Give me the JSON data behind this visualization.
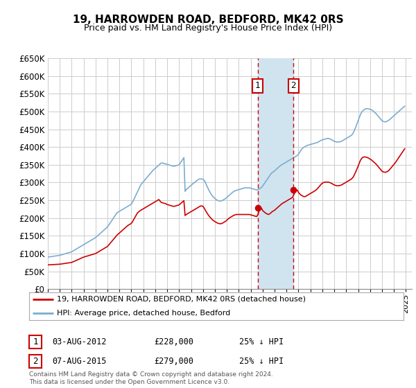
{
  "title": "19, HARROWDEN ROAD, BEDFORD, MK42 0RS",
  "subtitle": "Price paid vs. HM Land Registry's House Price Index (HPI)",
  "ylim": [
    0,
    650000
  ],
  "xlim_start": 1995.0,
  "xlim_end": 2025.5,
  "transaction1": {
    "date_label": "03-AUG-2012",
    "year": 2012.58,
    "price": 228000,
    "label": "25% ↓ HPI",
    "num": "1"
  },
  "transaction2": {
    "date_label": "07-AUG-2015",
    "year": 2015.58,
    "price": 279000,
    "label": "25% ↓ HPI",
    "num": "2"
  },
  "line_red_color": "#cc0000",
  "line_blue_color": "#7aadcf",
  "dot_color": "#cc0000",
  "shade_color": "#d0e4f0",
  "grid_color": "#cccccc",
  "background_color": "#ffffff",
  "legend_line1": "19, HARROWDEN ROAD, BEDFORD, MK42 0RS (detached house)",
  "legend_line2": "HPI: Average price, detached house, Bedford",
  "footnote": "Contains HM Land Registry data © Crown copyright and database right 2024.\nThis data is licensed under the Open Government Licence v3.0.",
  "hpi_x": [
    1995.0,
    1995.1,
    1995.2,
    1995.3,
    1995.4,
    1995.5,
    1995.6,
    1995.7,
    1995.8,
    1995.9,
    1996.0,
    1996.1,
    1996.2,
    1996.3,
    1996.4,
    1996.5,
    1996.6,
    1996.7,
    1996.8,
    1996.9,
    1997.0,
    1997.1,
    1997.2,
    1997.3,
    1997.4,
    1997.5,
    1997.6,
    1997.7,
    1997.8,
    1997.9,
    1998.0,
    1998.1,
    1998.2,
    1998.3,
    1998.4,
    1998.5,
    1998.6,
    1998.7,
    1998.8,
    1998.9,
    1999.0,
    1999.1,
    1999.2,
    1999.3,
    1999.4,
    1999.5,
    1999.6,
    1999.7,
    1999.8,
    1999.9,
    2000.0,
    2000.1,
    2000.2,
    2000.3,
    2000.4,
    2000.5,
    2000.6,
    2000.7,
    2000.8,
    2000.9,
    2001.0,
    2001.1,
    2001.2,
    2001.3,
    2001.4,
    2001.5,
    2001.6,
    2001.7,
    2001.8,
    2001.9,
    2002.0,
    2002.1,
    2002.2,
    2002.3,
    2002.4,
    2002.5,
    2002.6,
    2002.7,
    2002.8,
    2002.9,
    2003.0,
    2003.1,
    2003.2,
    2003.3,
    2003.4,
    2003.5,
    2003.6,
    2003.7,
    2003.8,
    2003.9,
    2004.0,
    2004.1,
    2004.2,
    2004.3,
    2004.4,
    2004.5,
    2004.6,
    2004.7,
    2004.8,
    2004.9,
    2005.0,
    2005.1,
    2005.2,
    2005.3,
    2005.4,
    2005.5,
    2005.6,
    2005.7,
    2005.8,
    2005.9,
    2006.0,
    2006.1,
    2006.2,
    2006.3,
    2006.4,
    2006.5,
    2006.6,
    2006.7,
    2006.8,
    2006.9,
    2007.0,
    2007.1,
    2007.2,
    2007.3,
    2007.4,
    2007.5,
    2007.6,
    2007.7,
    2007.8,
    2007.9,
    2008.0,
    2008.1,
    2008.2,
    2008.3,
    2008.4,
    2008.5,
    2008.6,
    2008.7,
    2008.8,
    2008.9,
    2009.0,
    2009.1,
    2009.2,
    2009.3,
    2009.4,
    2009.5,
    2009.6,
    2009.7,
    2009.8,
    2009.9,
    2010.0,
    2010.1,
    2010.2,
    2010.3,
    2010.4,
    2010.5,
    2010.6,
    2010.7,
    2010.8,
    2010.9,
    2011.0,
    2011.1,
    2011.2,
    2011.3,
    2011.4,
    2011.5,
    2011.6,
    2011.7,
    2011.8,
    2011.9,
    2012.0,
    2012.1,
    2012.2,
    2012.3,
    2012.4,
    2012.5,
    2012.6,
    2012.7,
    2012.8,
    2012.9,
    2013.0,
    2013.1,
    2013.2,
    2013.3,
    2013.4,
    2013.5,
    2013.6,
    2013.7,
    2013.8,
    2013.9,
    2014.0,
    2014.1,
    2014.2,
    2014.3,
    2014.4,
    2014.5,
    2014.6,
    2014.7,
    2014.8,
    2014.9,
    2015.0,
    2015.1,
    2015.2,
    2015.3,
    2015.4,
    2015.5,
    2015.6,
    2015.7,
    2015.8,
    2015.9,
    2016.0,
    2016.1,
    2016.2,
    2016.3,
    2016.4,
    2016.5,
    2016.6,
    2016.7,
    2016.8,
    2016.9,
    2017.0,
    2017.1,
    2017.2,
    2017.3,
    2017.4,
    2017.5,
    2017.6,
    2017.7,
    2017.8,
    2017.9,
    2018.0,
    2018.1,
    2018.2,
    2018.3,
    2018.4,
    2018.5,
    2018.6,
    2018.7,
    2018.8,
    2018.9,
    2019.0,
    2019.1,
    2019.2,
    2019.3,
    2019.4,
    2019.5,
    2019.6,
    2019.7,
    2019.8,
    2019.9,
    2020.0,
    2020.1,
    2020.2,
    2020.3,
    2020.4,
    2020.5,
    2020.6,
    2020.7,
    2020.8,
    2020.9,
    2021.0,
    2021.1,
    2021.2,
    2021.3,
    2021.4,
    2021.5,
    2021.6,
    2021.7,
    2021.8,
    2021.9,
    2022.0,
    2022.1,
    2022.2,
    2022.3,
    2022.4,
    2022.5,
    2022.6,
    2022.7,
    2022.8,
    2022.9,
    2023.0,
    2023.1,
    2023.2,
    2023.3,
    2023.4,
    2023.5,
    2023.6,
    2023.7,
    2023.8,
    2023.9,
    2024.0,
    2024.1,
    2024.2,
    2024.3,
    2024.4,
    2024.5,
    2024.6,
    2024.7,
    2024.8,
    2024.9
  ],
  "hpi_y": [
    90000,
    90500,
    91000,
    91500,
    92000,
    92500,
    93000,
    93500,
    94000,
    94500,
    95000,
    96000,
    97000,
    98000,
    99000,
    100000,
    101000,
    102000,
    103000,
    104000,
    105000,
    107000,
    109000,
    111000,
    113000,
    115000,
    117000,
    119000,
    121000,
    123000,
    125000,
    127000,
    129000,
    131000,
    133000,
    135000,
    137000,
    139000,
    141000,
    143000,
    145000,
    148000,
    151000,
    154000,
    157000,
    160000,
    163000,
    166000,
    169000,
    172000,
    175000,
    180000,
    185000,
    190000,
    195000,
    200000,
    205000,
    210000,
    215000,
    217000,
    219000,
    221000,
    223000,
    225000,
    227000,
    229000,
    231000,
    233000,
    235000,
    237000,
    240000,
    245000,
    252000,
    259000,
    266000,
    273000,
    280000,
    287000,
    294000,
    298000,
    302000,
    306000,
    310000,
    314000,
    318000,
    322000,
    326000,
    330000,
    334000,
    337000,
    340000,
    343000,
    346000,
    349000,
    352000,
    355000,
    355000,
    354000,
    353000,
    352000,
    351000,
    350000,
    349000,
    348000,
    347000,
    346000,
    346000,
    347000,
    348000,
    349000,
    350000,
    355000,
    360000,
    365000,
    370000,
    275000,
    280000,
    283000,
    286000,
    289000,
    292000,
    295000,
    298000,
    300000,
    303000,
    306000,
    308000,
    310000,
    310000,
    310000,
    309000,
    306000,
    300000,
    292000,
    285000,
    278000,
    272000,
    266000,
    262000,
    258000,
    255000,
    252000,
    250000,
    249000,
    248000,
    248000,
    249000,
    251000,
    253000,
    255000,
    258000,
    261000,
    264000,
    267000,
    270000,
    273000,
    275000,
    277000,
    278000,
    279000,
    280000,
    281000,
    282000,
    283000,
    284000,
    285000,
    285000,
    285000,
    285000,
    285000,
    284000,
    283000,
    282000,
    281000,
    280000,
    279000,
    280000,
    282000,
    284000,
    286000,
    290000,
    295000,
    300000,
    305000,
    310000,
    315000,
    320000,
    325000,
    328000,
    330000,
    333000,
    336000,
    339000,
    342000,
    345000,
    348000,
    350000,
    352000,
    354000,
    356000,
    358000,
    360000,
    362000,
    364000,
    366000,
    368000,
    370000,
    372000,
    374000,
    376000,
    380000,
    385000,
    390000,
    395000,
    398000,
    400000,
    402000,
    404000,
    405000,
    406000,
    407000,
    408000,
    409000,
    410000,
    411000,
    412000,
    413000,
    415000,
    417000,
    419000,
    420000,
    421000,
    422000,
    423000,
    424000,
    424000,
    423000,
    422000,
    420000,
    418000,
    416000,
    415000,
    414000,
    414000,
    414000,
    415000,
    416000,
    418000,
    420000,
    422000,
    424000,
    426000,
    428000,
    430000,
    432000,
    435000,
    440000,
    448000,
    456000,
    465000,
    474000,
    483000,
    492000,
    498000,
    502000,
    505000,
    507000,
    508000,
    508000,
    507000,
    506000,
    505000,
    503000,
    500000,
    497000,
    494000,
    490000,
    486000,
    482000,
    478000,
    474000,
    472000,
    471000,
    471000,
    472000,
    474000,
    476000,
    479000,
    482000,
    485000,
    488000,
    491000,
    494000,
    497000,
    500000,
    503000,
    506000,
    509000,
    512000,
    515000
  ],
  "red_x": [
    1995.0,
    1995.1,
    1995.2,
    1995.3,
    1995.4,
    1995.5,
    1995.6,
    1995.7,
    1995.8,
    1995.9,
    1996.0,
    1996.1,
    1996.2,
    1996.3,
    1996.4,
    1996.5,
    1996.6,
    1996.7,
    1996.8,
    1996.9,
    1997.0,
    1997.1,
    1997.2,
    1997.3,
    1997.4,
    1997.5,
    1997.6,
    1997.7,
    1997.8,
    1997.9,
    1998.0,
    1998.1,
    1998.2,
    1998.3,
    1998.4,
    1998.5,
    1998.6,
    1998.7,
    1998.8,
    1998.9,
    1999.0,
    1999.1,
    1999.2,
    1999.3,
    1999.4,
    1999.5,
    1999.6,
    1999.7,
    1999.8,
    1999.9,
    2000.0,
    2000.1,
    2000.2,
    2000.3,
    2000.4,
    2000.5,
    2000.6,
    2000.7,
    2000.8,
    2000.9,
    2001.0,
    2001.1,
    2001.2,
    2001.3,
    2001.4,
    2001.5,
    2001.6,
    2001.7,
    2001.8,
    2001.9,
    2002.0,
    2002.1,
    2002.2,
    2002.3,
    2002.4,
    2002.5,
    2002.6,
    2002.7,
    2002.8,
    2002.9,
    2003.0,
    2003.1,
    2003.2,
    2003.3,
    2003.4,
    2003.5,
    2003.6,
    2003.7,
    2003.8,
    2003.9,
    2004.0,
    2004.1,
    2004.2,
    2004.3,
    2004.4,
    2004.5,
    2004.6,
    2004.7,
    2004.8,
    2004.9,
    2005.0,
    2005.1,
    2005.2,
    2005.3,
    2005.4,
    2005.5,
    2005.6,
    2005.7,
    2005.8,
    2005.9,
    2006.0,
    2006.1,
    2006.2,
    2006.3,
    2006.4,
    2006.5,
    2006.6,
    2006.7,
    2006.8,
    2006.9,
    2007.0,
    2007.1,
    2007.2,
    2007.3,
    2007.4,
    2007.5,
    2007.6,
    2007.7,
    2007.8,
    2007.9,
    2008.0,
    2008.1,
    2008.2,
    2008.3,
    2008.4,
    2008.5,
    2008.6,
    2008.7,
    2008.8,
    2008.9,
    2009.0,
    2009.1,
    2009.2,
    2009.3,
    2009.4,
    2009.5,
    2009.6,
    2009.7,
    2009.8,
    2009.9,
    2010.0,
    2010.1,
    2010.2,
    2010.3,
    2010.4,
    2010.5,
    2010.6,
    2010.7,
    2010.8,
    2010.9,
    2011.0,
    2011.1,
    2011.2,
    2011.3,
    2011.4,
    2011.5,
    2011.6,
    2011.7,
    2011.8,
    2011.9,
    2012.0,
    2012.1,
    2012.2,
    2012.3,
    2012.4,
    2012.5,
    2012.6,
    2012.7,
    2012.8,
    2012.9,
    2013.0,
    2013.1,
    2013.2,
    2013.3,
    2013.4,
    2013.5,
    2013.6,
    2013.7,
    2013.8,
    2013.9,
    2014.0,
    2014.1,
    2014.2,
    2014.3,
    2014.4,
    2014.5,
    2014.6,
    2014.7,
    2014.8,
    2014.9,
    2015.0,
    2015.1,
    2015.2,
    2015.3,
    2015.4,
    2015.5,
    2015.6,
    2015.7,
    2015.8,
    2015.9,
    2016.0,
    2016.1,
    2016.2,
    2016.3,
    2016.4,
    2016.5,
    2016.6,
    2016.7,
    2016.8,
    2016.9,
    2017.0,
    2017.1,
    2017.2,
    2017.3,
    2017.4,
    2017.5,
    2017.6,
    2017.7,
    2017.8,
    2017.9,
    2018.0,
    2018.1,
    2018.2,
    2018.3,
    2018.4,
    2018.5,
    2018.6,
    2018.7,
    2018.8,
    2018.9,
    2019.0,
    2019.1,
    2019.2,
    2019.3,
    2019.4,
    2019.5,
    2019.6,
    2019.7,
    2019.8,
    2019.9,
    2020.0,
    2020.1,
    2020.2,
    2020.3,
    2020.4,
    2020.5,
    2020.6,
    2020.7,
    2020.8,
    2020.9,
    2021.0,
    2021.1,
    2021.2,
    2021.3,
    2021.4,
    2021.5,
    2021.6,
    2021.7,
    2021.8,
    2021.9,
    2022.0,
    2022.1,
    2022.2,
    2022.3,
    2022.4,
    2022.5,
    2022.6,
    2022.7,
    2022.8,
    2022.9,
    2023.0,
    2023.1,
    2023.2,
    2023.3,
    2023.4,
    2023.5,
    2023.6,
    2023.7,
    2023.8,
    2023.9,
    2024.0,
    2024.1,
    2024.2,
    2024.3,
    2024.4,
    2024.5,
    2024.6,
    2024.7,
    2024.8,
    2024.9
  ],
  "red_y": [
    68000,
    68200,
    68400,
    68600,
    68800,
    69000,
    69200,
    69400,
    69600,
    69800,
    70000,
    70500,
    71000,
    71500,
    72000,
    72500,
    73000,
    73500,
    74000,
    74500,
    75000,
    76500,
    78000,
    79500,
    81000,
    82500,
    84000,
    85500,
    87000,
    88500,
    90000,
    91000,
    92000,
    93000,
    94000,
    95000,
    96000,
    97000,
    98000,
    99000,
    100000,
    102000,
    104000,
    106000,
    108000,
    110000,
    112000,
    114000,
    116000,
    118000,
    120000,
    124000,
    128000,
    132000,
    136000,
    140000,
    144000,
    148000,
    152000,
    155000,
    158000,
    161000,
    164000,
    167000,
    170000,
    173000,
    176000,
    179000,
    181000,
    183000,
    185000,
    190000,
    196000,
    202000,
    208000,
    214000,
    217000,
    220000,
    222000,
    224000,
    226000,
    228000,
    230000,
    232000,
    234000,
    236000,
    238000,
    240000,
    242000,
    244000,
    246000,
    248000,
    250000,
    252000,
    248000,
    244000,
    243000,
    242000,
    241000,
    240000,
    238000,
    237000,
    236000,
    235000,
    234000,
    233000,
    233000,
    234000,
    235000,
    236000,
    237000,
    240000,
    243000,
    246000,
    249000,
    207000,
    210000,
    212000,
    214000,
    216000,
    218000,
    220000,
    222000,
    224000,
    226000,
    228000,
    230000,
    232000,
    234000,
    234000,
    233000,
    228000,
    222000,
    216000,
    211000,
    206000,
    202000,
    198000,
    195000,
    192000,
    190000,
    188000,
    186000,
    185000,
    184000,
    184000,
    185000,
    187000,
    189000,
    191000,
    194000,
    197000,
    200000,
    202000,
    204000,
    206000,
    208000,
    209000,
    210000,
    210000,
    210000,
    210000,
    210000,
    210000,
    210000,
    210000,
    210000,
    210000,
    210000,
    210000,
    209000,
    208000,
    207000,
    206000,
    205000,
    204000,
    210000,
    220000,
    226000,
    228000,
    221000,
    218000,
    215000,
    213000,
    211000,
    210000,
    212000,
    215000,
    218000,
    220000,
    222000,
    225000,
    228000,
    231000,
    234000,
    237000,
    240000,
    242000,
    244000,
    246000,
    248000,
    250000,
    252000,
    254000,
    256000,
    258000,
    265000,
    272000,
    276000,
    279000,
    272000,
    268000,
    265000,
    263000,
    261000,
    260000,
    261000,
    263000,
    265000,
    267000,
    269000,
    271000,
    273000,
    275000,
    277000,
    280000,
    283000,
    287000,
    291000,
    295000,
    298000,
    300000,
    301000,
    301000,
    301000,
    301000,
    300000,
    299000,
    297000,
    295000,
    293000,
    292000,
    291000,
    291000,
    291000,
    292000,
    293000,
    295000,
    297000,
    299000,
    301000,
    303000,
    305000,
    307000,
    309000,
    312000,
    316000,
    323000,
    330000,
    338000,
    346000,
    355000,
    363000,
    368000,
    371000,
    372000,
    372000,
    371000,
    370000,
    368000,
    366000,
    364000,
    361000,
    358000,
    355000,
    352000,
    348000,
    344000,
    340000,
    336000,
    332000,
    330000,
    329000,
    329000,
    330000,
    332000,
    335000,
    339000,
    343000,
    347000,
    351000,
    355000,
    360000,
    365000,
    370000,
    375000,
    380000,
    385000,
    390000,
    395000
  ],
  "xtick_years": [
    1995,
    1996,
    1997,
    1998,
    1999,
    2000,
    2001,
    2002,
    2003,
    2004,
    2005,
    2006,
    2007,
    2008,
    2009,
    2010,
    2011,
    2012,
    2013,
    2014,
    2015,
    2016,
    2017,
    2018,
    2019,
    2020,
    2021,
    2022,
    2023,
    2024,
    2025
  ]
}
